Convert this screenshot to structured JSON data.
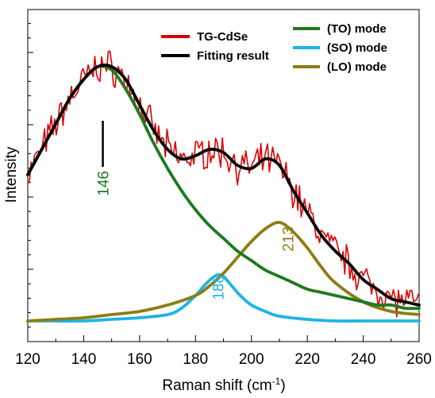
{
  "chart_data": {
    "type": "line",
    "xlabel": "Raman shift (cm",
    "xlabel_sup": "-1",
    "xlabel_suffix": ")",
    "ylabel": "Intensity",
    "xlim": [
      120,
      260
    ],
    "ylim": [
      0,
      1
    ],
    "x_ticks": [
      120,
      140,
      160,
      180,
      200,
      220,
      240,
      260
    ],
    "y_tick_labels_shown": false,
    "grid": false,
    "legend_left": [
      {
        "name": "TG-CdSe",
        "color": "#dd0000"
      },
      {
        "name": "Fitting result",
        "color": "#000000"
      }
    ],
    "legend_right": [
      {
        "name": "(TO) mode",
        "color": "#1e7a1e"
      },
      {
        "name": "(SO) mode",
        "color": "#1eb4e6"
      },
      {
        "name": "(LO) mode",
        "color": "#8c7d14"
      }
    ],
    "peaks": [
      {
        "label": "146",
        "x": 146,
        "color": "#1e7a1e"
      },
      {
        "label": "188",
        "x": 188,
        "color": "#1eb4e6"
      },
      {
        "label": "213",
        "x": 213,
        "color": "#8c7d14"
      }
    ],
    "series": [
      {
        "name": "TG-CdSe",
        "color": "#dd0000",
        "note": "noisy experimental spectrum following fitting result"
      },
      {
        "name": "Fitting result",
        "color": "#000000",
        "x": [
          120,
          125,
          130,
          135,
          140,
          145,
          150,
          155,
          160,
          165,
          170,
          175,
          180,
          185,
          190,
          195,
          200,
          205,
          210,
          215,
          220,
          225,
          230,
          235,
          240,
          245,
          250,
          255,
          260
        ],
        "values": [
          0.48,
          0.56,
          0.64,
          0.72,
          0.78,
          0.82,
          0.82,
          0.78,
          0.7,
          0.62,
          0.56,
          0.53,
          0.54,
          0.56,
          0.55,
          0.51,
          0.5,
          0.53,
          0.51,
          0.43,
          0.36,
          0.29,
          0.24,
          0.2,
          0.15,
          0.12,
          0.09,
          0.08,
          0.07
        ]
      },
      {
        "name": "(TO) mode",
        "color": "#1e7a1e",
        "x": [
          120,
          125,
          130,
          135,
          140,
          145,
          150,
          155,
          160,
          165,
          170,
          175,
          180,
          185,
          190,
          195,
          200,
          205,
          210,
          215,
          220,
          225,
          230,
          235,
          240,
          245,
          250,
          255,
          260
        ],
        "values": [
          0.48,
          0.56,
          0.64,
          0.72,
          0.78,
          0.82,
          0.81,
          0.75,
          0.67,
          0.58,
          0.5,
          0.43,
          0.37,
          0.32,
          0.28,
          0.24,
          0.21,
          0.18,
          0.16,
          0.14,
          0.12,
          0.11,
          0.1,
          0.09,
          0.08,
          0.07,
          0.07,
          0.06,
          0.06
        ]
      },
      {
        "name": "(SO) mode",
        "color": "#1eb4e6",
        "x": [
          120,
          130,
          140,
          150,
          160,
          170,
          175,
          180,
          183,
          186,
          188,
          190,
          193,
          196,
          200,
          205,
          210,
          220,
          230,
          240,
          250,
          260
        ],
        "values": [
          0.02,
          0.02,
          0.02,
          0.025,
          0.03,
          0.04,
          0.06,
          0.1,
          0.13,
          0.155,
          0.165,
          0.16,
          0.13,
          0.1,
          0.07,
          0.05,
          0.035,
          0.025,
          0.02,
          0.02,
          0.02,
          0.02
        ]
      },
      {
        "name": "(LO) mode",
        "color": "#8c7d14",
        "x": [
          120,
          130,
          140,
          150,
          160,
          170,
          180,
          185,
          190,
          195,
          200,
          205,
          210,
          215,
          220,
          225,
          230,
          240,
          250,
          260
        ],
        "values": [
          0.02,
          0.025,
          0.03,
          0.04,
          0.05,
          0.07,
          0.1,
          0.13,
          0.17,
          0.22,
          0.27,
          0.31,
          0.33,
          0.3,
          0.25,
          0.19,
          0.14,
          0.08,
          0.05,
          0.04
        ]
      }
    ]
  }
}
